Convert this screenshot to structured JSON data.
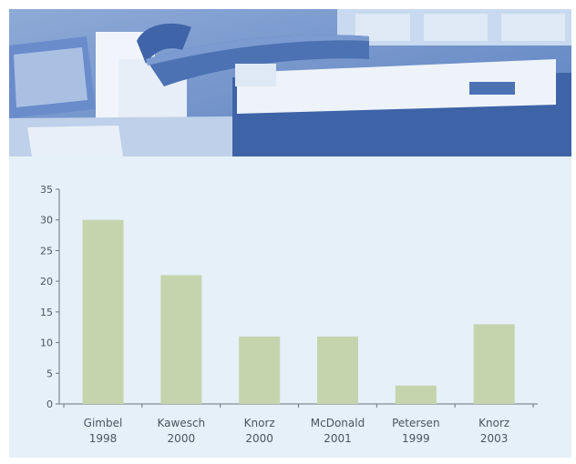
{
  "colors": {
    "panel_background": "#e5f0f8",
    "bar_fill": "#c4d5ae",
    "axis": "#6b7580",
    "text": "#4a5560",
    "banner_tint": "#4c72b3"
  },
  "banner": {
    "description_icon": "office-photo-banner"
  },
  "chart_data": {
    "type": "bar",
    "categories": [
      [
        "Gimbel",
        "1998"
      ],
      [
        "Kawesch",
        "2000"
      ],
      [
        "Knorz",
        "2000"
      ],
      [
        "McDonald",
        "2001"
      ],
      [
        "Petersen",
        "1999"
      ],
      [
        "Knorz",
        "2003"
      ]
    ],
    "values": [
      30,
      21,
      11,
      11,
      3,
      13
    ],
    "ylim": [
      0,
      35
    ],
    "yticks": [
      0,
      5,
      10,
      15,
      20,
      25,
      30,
      35
    ],
    "title": "",
    "xlabel": "",
    "ylabel": "",
    "grid": false,
    "legend": "none"
  }
}
